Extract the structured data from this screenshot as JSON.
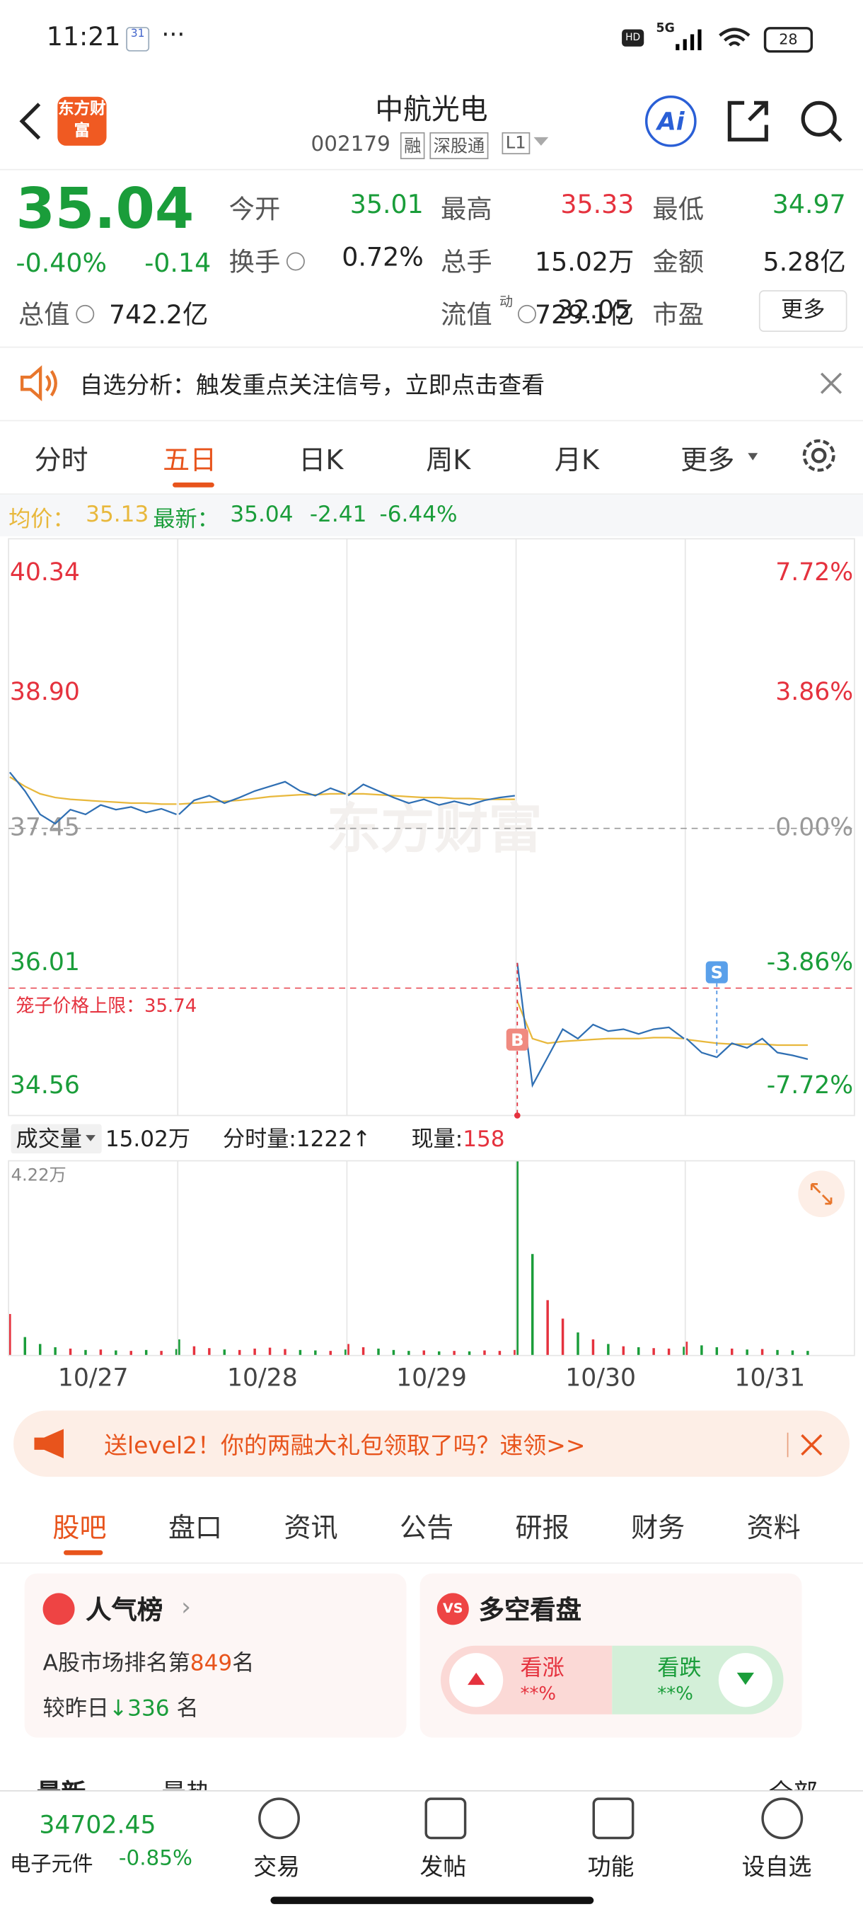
{
  "status_bar": {
    "time": "11:21",
    "network": "5G",
    "battery": "28"
  },
  "header": {
    "logo": "东方财富",
    "name": "中航光电",
    "code": "002179",
    "tags": [
      "融",
      "深股通",
      "L1"
    ],
    "ai": "Ai"
  },
  "quote": {
    "price": "35.04",
    "change_pct": "-0.40%",
    "change": "-0.14",
    "fields": [
      {
        "label": "今开",
        "value": "35.01",
        "color": "#1a9d3a"
      },
      {
        "label": "最高",
        "value": "35.33",
        "color": "#e5323e"
      },
      {
        "label": "最低",
        "value": "34.97",
        "color": "#1a9d3a"
      },
      {
        "label": "换手",
        "value": "0.72%",
        "color": "#222"
      },
      {
        "label": "总手",
        "value": "15.02万",
        "color": "#222"
      },
      {
        "label": "金额",
        "value": "5.28亿",
        "color": "#222"
      },
      {
        "label": "总值",
        "value": "742.2亿",
        "color": "#222"
      },
      {
        "label": "流值",
        "value": "729.1亿",
        "color": "#222"
      },
      {
        "label": "市盈",
        "value": "32.05",
        "color": "#222"
      }
    ],
    "pe_mark": "动",
    "more": "更多"
  },
  "notice": "自选分析：触发重点关注信号，立即点击查看",
  "tabs": [
    "分时",
    "五日",
    "日K",
    "周K",
    "月K",
    "更多"
  ],
  "info_line": {
    "avg_label": "均价：",
    "avg": "35.13",
    "latest_label": "最新：",
    "latest": "35.04",
    "change": "-2.41",
    "change_pct": "-6.44%"
  },
  "price_chart": {
    "type": "line",
    "watermark": "东方财富",
    "ylim": [
      34.56,
      40.34
    ],
    "yticks": [
      {
        "value": 40.34,
        "label": "40.34"
      },
      {
        "value": 38.9,
        "label": "38.90"
      },
      {
        "value": 37.45,
        "label": "37.45"
      },
      {
        "value": 36.01,
        "label": "36.01"
      },
      {
        "value": 34.56,
        "label": "34.56"
      }
    ],
    "y2ticks": [
      "7.72%",
      "3.86%",
      "0.00%",
      "-3.86%",
      "-7.72%"
    ],
    "limit_label": "笼子价格上限：35.74",
    "limit": 35.74,
    "buy_marker": "B",
    "sell_marker": "S",
    "price_color": "#2f6fb3",
    "avg_color": "#e8b83c",
    "up_color": "#e5323e",
    "down_color": "#1a9d3a",
    "days": [
      {
        "date": "10/27",
        "price": [
          38.05,
          37.85,
          37.6,
          37.5,
          37.65,
          37.6,
          37.7,
          37.65,
          37.68,
          37.62,
          37.66,
          37.6
        ],
        "avg": [
          38.0,
          37.9,
          37.82,
          37.78,
          37.76,
          37.75,
          37.74,
          37.73,
          37.72,
          37.72,
          37.71,
          37.71
        ],
        "volume": [
          9000,
          4000,
          2500,
          1800,
          1500,
          1200,
          1300,
          1100,
          1000,
          1200,
          1000,
          1400
        ]
      },
      {
        "date": "10/28",
        "price": [
          37.6,
          37.75,
          37.8,
          37.72,
          37.78,
          37.85,
          37.9,
          37.95,
          37.85,
          37.8,
          37.88,
          37.82
        ],
        "avg": [
          37.71,
          37.72,
          37.73,
          37.74,
          37.75,
          37.77,
          37.79,
          37.8,
          37.81,
          37.81,
          37.82,
          37.82
        ],
        "volume": [
          3500,
          2000,
          1600,
          1300,
          1200,
          1500,
          1700,
          1400,
          1200,
          1100,
          1000,
          1300
        ]
      },
      {
        "date": "10/29",
        "price": [
          37.8,
          37.92,
          37.85,
          37.78,
          37.72,
          37.76,
          37.7,
          37.74,
          37.7,
          37.75,
          37.78,
          37.8
        ],
        "avg": [
          37.82,
          37.82,
          37.81,
          37.8,
          37.79,
          37.78,
          37.78,
          37.77,
          37.77,
          37.76,
          37.76,
          37.76
        ],
        "volume": [
          2500,
          1800,
          1500,
          1200,
          1000,
          1100,
          900,
          1000,
          900,
          1100,
          1000,
          1200
        ]
      },
      {
        "date": "10/30",
        "price": [
          36.01,
          34.7,
          35.0,
          35.3,
          35.2,
          35.35,
          35.28,
          35.3,
          35.25,
          35.3,
          35.32,
          35.2
        ],
        "avg": [
          35.6,
          35.2,
          35.15,
          35.17,
          35.18,
          35.19,
          35.2,
          35.2,
          35.2,
          35.21,
          35.21,
          35.2
        ],
        "volume": [
          42200,
          22000,
          12000,
          8000,
          5000,
          3500,
          2500,
          2000,
          1800,
          1600,
          1500,
          1900
        ]
      },
      {
        "date": "10/31",
        "price": [
          35.2,
          35.05,
          35.0,
          35.15,
          35.1,
          35.2,
          35.05,
          35.02,
          34.98
        ],
        "avg": [
          35.19,
          35.17,
          35.15,
          35.14,
          35.14,
          35.14,
          35.13,
          35.13,
          35.13
        ],
        "volume": [
          3000,
          2200,
          1800,
          1500,
          1300,
          1400,
          1200,
          1100,
          1000
        ]
      }
    ]
  },
  "volume_bar": {
    "label": "成交量",
    "total": "15.02万",
    "minute": "分时量:1222↑",
    "current_label": "现量:",
    "current": "158",
    "max_label": "4.22万",
    "ylim": [
      0,
      42200
    ]
  },
  "banner": "送level2！你的两融大礼包领取了吗？速领>>",
  "section_tabs": [
    "股吧",
    "盘口",
    "资讯",
    "公告",
    "研报",
    "财务",
    "资料"
  ],
  "popularity": {
    "title": "人气榜",
    "rank_prefix": "A股市场排名第",
    "rank": "849",
    "rank_suffix": "名",
    "delta_prefix": "较昨日",
    "delta": "336",
    "delta_suffix": "名"
  },
  "sentiment": {
    "title": "多空看盘",
    "bull": "看涨",
    "bull_value": "**%",
    "bear": "看跌",
    "bear_value": "**%"
  },
  "feed_tabs": [
    "最新",
    "最热",
    "全部"
  ],
  "bottom_bar": {
    "index_value": "34702.45",
    "index_name": "电子元件",
    "index_change": "-0.85%",
    "items": [
      "交易",
      "发帖",
      "功能",
      "设自选"
    ]
  }
}
